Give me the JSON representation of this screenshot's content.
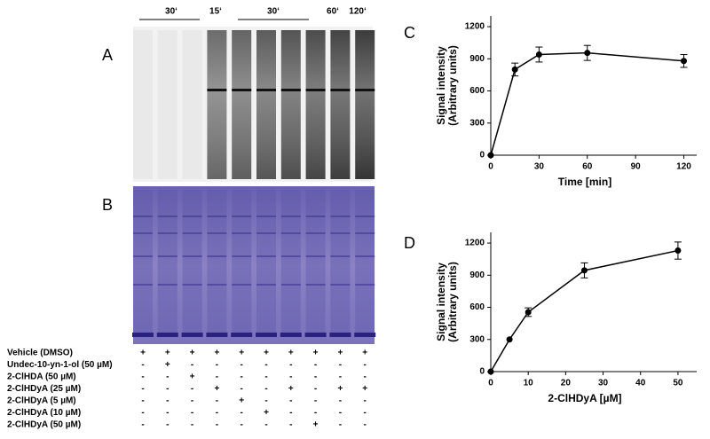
{
  "panel_labels": [
    "A",
    "B",
    "C",
    "D"
  ],
  "gel_header": [
    {
      "text": "30‘"
    },
    {
      "text": "15‘"
    },
    {
      "text": "30‘"
    },
    {
      "text": "60‘"
    },
    {
      "text": "120‘"
    }
  ],
  "conditions": [
    {
      "label": "Vehicle (DMSO)",
      "lanes": [
        "+",
        "+",
        "+",
        "+",
        "+",
        "+",
        "+",
        "+",
        "+",
        "+"
      ]
    },
    {
      "label": "Undec-10-yn-1-ol (50 µM)",
      "lanes": [
        "-",
        "+",
        "-",
        "-",
        "-",
        "-",
        "-",
        "-",
        "-",
        "-"
      ]
    },
    {
      "label": "2-ClHDA (50 µM)",
      "lanes": [
        "-",
        "-",
        "+",
        "-",
        "-",
        "-",
        "-",
        "-",
        "-",
        "-"
      ]
    },
    {
      "label": "2-ClHDyA (25 µM)",
      "lanes": [
        "-",
        "-",
        "-",
        "+",
        "-",
        "-",
        "+",
        "-",
        "+",
        "+"
      ]
    },
    {
      "label": "2-ClHDyA (5 µM)",
      "lanes": [
        "-",
        "-",
        "-",
        "-",
        "+",
        "-",
        "-",
        "-",
        "-",
        "-"
      ]
    },
    {
      "label": "2-ClHDyA (10 µM)",
      "lanes": [
        "-",
        "-",
        "-",
        "-",
        "-",
        "+",
        "-",
        "-",
        "-",
        "-"
      ]
    },
    {
      "label": "2-ClHDyA (50 µM)",
      "lanes": [
        "-",
        "-",
        "-",
        "-",
        "-",
        "-",
        "-",
        "+",
        "-",
        "-"
      ]
    }
  ],
  "chart_data": [
    {
      "type": "line",
      "ylabel": [
        "Signal intensity",
        "(Arbitrary units)"
      ],
      "xlabel": "Time [min]",
      "x": [
        0,
        15,
        30,
        60,
        120
      ],
      "values": [
        0,
        800,
        940,
        955,
        880
      ],
      "errors": [
        0,
        60,
        70,
        70,
        60
      ],
      "xlim": [
        0,
        128
      ],
      "xticks": [
        0,
        30,
        60,
        90,
        120
      ],
      "ylim": [
        0,
        1300
      ],
      "yticks": [
        0,
        300,
        600,
        900,
        1200
      ],
      "color": "#000000"
    },
    {
      "type": "line",
      "ylabel": [
        "Signal intensity",
        "(Arbitrary units)"
      ],
      "xlabel": "2-ClHDyA [µM]",
      "x": [
        0,
        5,
        10,
        25,
        50
      ],
      "values": [
        0,
        300,
        555,
        945,
        1130
      ],
      "errors": [
        0,
        0,
        40,
        70,
        80
      ],
      "xlim": [
        0,
        55
      ],
      "xticks": [
        0,
        10,
        20,
        30,
        40,
        50
      ],
      "ylim": [
        0,
        1300
      ],
      "yticks": [
        0,
        300,
        600,
        900,
        1200
      ],
      "color": "#000000"
    }
  ]
}
